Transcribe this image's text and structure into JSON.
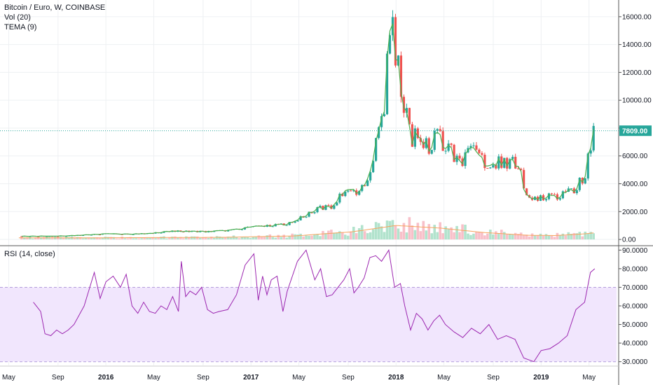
{
  "legend": {
    "symbol": "Bitcoin / Euro, W, COINBASE",
    "volume": "Vol (20)",
    "tema": "TEMA (9)",
    "rsi": "RSI (14, close)"
  },
  "last_price_label": "7809.00",
  "colors": {
    "up": "#26a69a",
    "down": "#ef5350",
    "tema": "#4caf50",
    "volume_ma": "#f7a35c",
    "rsi_line": "#9c27b0",
    "rsi_band": "#f1e6fd",
    "last_price": "#26a69a",
    "grid": "#eef0f3",
    "axis_border": "#555555"
  },
  "chart_data": [
    {
      "type": "candlestick",
      "title": "Bitcoin / Euro, W, COINBASE",
      "x_ticks": [
        {
          "label": "May",
          "bold": false
        },
        {
          "label": "Sep",
          "bold": false
        },
        {
          "label": "2016",
          "bold": true
        },
        {
          "label": "May",
          "bold": false
        },
        {
          "label": "Sep",
          "bold": false
        },
        {
          "label": "2017",
          "bold": true
        },
        {
          "label": "May",
          "bold": false
        },
        {
          "label": "Sep",
          "bold": false
        },
        {
          "label": "2018",
          "bold": true
        },
        {
          "label": "May",
          "bold": false
        },
        {
          "label": "Sep",
          "bold": false
        },
        {
          "label": "2019",
          "bold": true
        },
        {
          "label": "May",
          "bold": false
        }
      ],
      "y_ticks": [
        "0.00",
        "2000.00",
        "4000.00",
        "6000.00",
        "8000.00",
        "10000.00",
        "12000.00",
        "14000.00",
        "16000.00"
      ],
      "ylim": [
        -400,
        17200
      ],
      "last_price": 7809,
      "price_path": [
        [
          2015.4,
          230
        ],
        [
          2015.6,
          240
        ],
        [
          2015.75,
          260
        ],
        [
          2015.85,
          320
        ],
        [
          2016.0,
          400
        ],
        [
          2016.15,
          380
        ],
        [
          2016.3,
          420
        ],
        [
          2016.45,
          600
        ],
        [
          2016.55,
          580
        ],
        [
          2016.7,
          560
        ],
        [
          2016.85,
          650
        ],
        [
          2016.95,
          800
        ],
        [
          2017.02,
          900
        ],
        [
          2017.15,
          1000
        ],
        [
          2017.25,
          1100
        ],
        [
          2017.35,
          1600
        ],
        [
          2017.45,
          2200
        ],
        [
          2017.55,
          2300
        ],
        [
          2017.65,
          3600
        ],
        [
          2017.7,
          3800
        ],
        [
          2017.75,
          3200
        ],
        [
          2017.82,
          5000
        ],
        [
          2017.88,
          7500
        ],
        [
          2017.92,
          9500
        ],
        [
          2017.96,
          15800
        ],
        [
          2017.99,
          14000
        ],
        [
          2018.02,
          12000
        ],
        [
          2018.07,
          9000
        ],
        [
          2018.11,
          7000
        ],
        [
          2018.16,
          7800
        ],
        [
          2018.22,
          6500
        ],
        [
          2018.28,
          7400
        ],
        [
          2018.36,
          6600
        ],
        [
          2018.44,
          5400
        ],
        [
          2018.52,
          6500
        ],
        [
          2018.6,
          5500
        ],
        [
          2018.7,
          5600
        ],
        [
          2018.85,
          5500
        ],
        [
          2018.88,
          3500
        ],
        [
          2018.95,
          2900
        ],
        [
          2019.02,
          3100
        ],
        [
          2019.1,
          3000
        ],
        [
          2019.22,
          3500
        ],
        [
          2019.3,
          4500
        ],
        [
          2019.34,
          6800
        ],
        [
          2019.37,
          7809
        ]
      ],
      "volume_ma_path": [
        [
          2015.4,
          120
        ],
        [
          2016.0,
          120
        ],
        [
          2016.8,
          150
        ],
        [
          2017.3,
          250
        ],
        [
          2017.7,
          550
        ],
        [
          2017.9,
          850
        ],
        [
          2018.0,
          1000
        ],
        [
          2018.3,
          820
        ],
        [
          2018.6,
          500
        ],
        [
          2018.9,
          300
        ],
        [
          2019.1,
          280
        ],
        [
          2019.3,
          400
        ],
        [
          2019.37,
          480
        ]
      ]
    },
    {
      "type": "line",
      "title": "RSI (14, close)",
      "y_ticks": [
        "30.0000",
        "40.0000",
        "50.0000",
        "60.0000",
        "70.0000",
        "80.0000",
        "90.0000"
      ],
      "ylim": [
        28,
        92
      ],
      "band": [
        30,
        70
      ],
      "rsi_path": [
        [
          2015.5,
          62
        ],
        [
          2015.55,
          57
        ],
        [
          2015.58,
          45
        ],
        [
          2015.62,
          44
        ],
        [
          2015.66,
          47
        ],
        [
          2015.7,
          45
        ],
        [
          2015.74,
          47
        ],
        [
          2015.78,
          50
        ],
        [
          2015.85,
          60
        ],
        [
          2015.92,
          78
        ],
        [
          2015.96,
          64
        ],
        [
          2016.0,
          73
        ],
        [
          2016.05,
          76
        ],
        [
          2016.1,
          70
        ],
        [
          2016.14,
          77
        ],
        [
          2016.18,
          60
        ],
        [
          2016.22,
          56
        ],
        [
          2016.26,
          62
        ],
        [
          2016.3,
          57
        ],
        [
          2016.34,
          56
        ],
        [
          2016.38,
          60
        ],
        [
          2016.42,
          58
        ],
        [
          2016.46,
          65
        ],
        [
          2016.5,
          57
        ],
        [
          2016.52,
          84
        ],
        [
          2016.55,
          65
        ],
        [
          2016.58,
          68
        ],
        [
          2016.62,
          66
        ],
        [
          2016.66,
          70
        ],
        [
          2016.7,
          58
        ],
        [
          2016.74,
          56
        ],
        [
          2016.78,
          57
        ],
        [
          2016.84,
          58
        ],
        [
          2016.9,
          66
        ],
        [
          2016.96,
          82
        ],
        [
          2017.02,
          88
        ],
        [
          2017.05,
          63
        ],
        [
          2017.08,
          76
        ],
        [
          2017.11,
          66
        ],
        [
          2017.14,
          74
        ],
        [
          2017.18,
          76
        ],
        [
          2017.22,
          57
        ],
        [
          2017.25,
          68
        ],
        [
          2017.32,
          84
        ],
        [
          2017.38,
          90
        ],
        [
          2017.44,
          74
        ],
        [
          2017.48,
          80
        ],
        [
          2017.52,
          65
        ],
        [
          2017.56,
          66
        ],
        [
          2017.6,
          70
        ],
        [
          2017.64,
          74
        ],
        [
          2017.68,
          80
        ],
        [
          2017.71,
          67
        ],
        [
          2017.74,
          70
        ],
        [
          2017.78,
          75
        ],
        [
          2017.82,
          86
        ],
        [
          2017.86,
          87
        ],
        [
          2017.9,
          84
        ],
        [
          2017.95,
          90
        ],
        [
          2017.99,
          70
        ],
        [
          2018.03,
          72
        ],
        [
          2018.06,
          60
        ],
        [
          2018.1,
          47
        ],
        [
          2018.14,
          56
        ],
        [
          2018.18,
          53
        ],
        [
          2018.22,
          47
        ],
        [
          2018.26,
          52
        ],
        [
          2018.3,
          55
        ],
        [
          2018.34,
          50
        ],
        [
          2018.4,
          46
        ],
        [
          2018.46,
          43
        ],
        [
          2018.52,
          48
        ],
        [
          2018.58,
          45
        ],
        [
          2018.64,
          50
        ],
        [
          2018.7,
          42
        ],
        [
          2018.76,
          44
        ],
        [
          2018.82,
          42
        ],
        [
          2018.88,
          32
        ],
        [
          2018.95,
          30
        ],
        [
          2019.0,
          36
        ],
        [
          2019.06,
          37
        ],
        [
          2019.12,
          40
        ],
        [
          2019.18,
          44
        ],
        [
          2019.24,
          58
        ],
        [
          2019.3,
          62
        ],
        [
          2019.34,
          78
        ],
        [
          2019.37,
          80
        ]
      ]
    }
  ]
}
